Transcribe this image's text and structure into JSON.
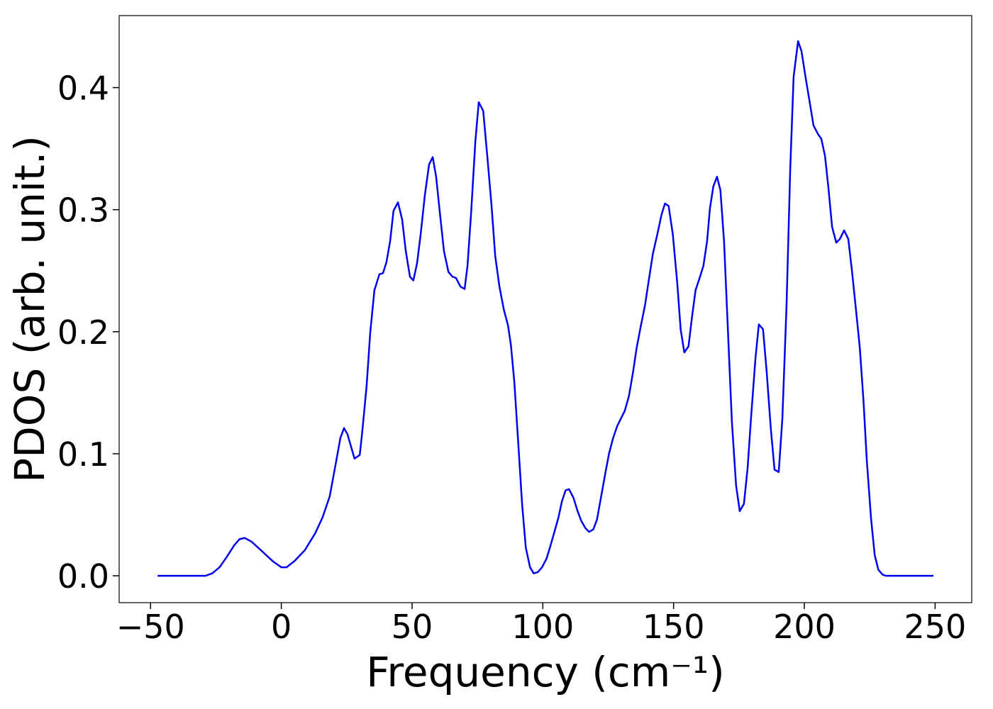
{
  "chart_data": {
    "type": "line",
    "xlabel": "Frequency (cm⁻¹)",
    "ylabel": "PDOS (arb. unit.)",
    "color": "#0000ee",
    "x": [
      -47.3,
      -29,
      -26.4,
      -23.6,
      -21,
      -18,
      -16,
      -14,
      -11.4,
      -7.3,
      -3.3,
      0,
      2,
      5,
      9,
      13,
      15.8,
      18.5,
      21,
      22.6,
      24,
      25.3,
      28,
      30,
      31,
      32.6,
      34,
      35.6,
      37.5,
      38.9,
      40.2,
      41.6,
      42.9,
      44.6,
      46.2,
      47.6,
      49.2,
      50.5,
      51.9,
      53.3,
      54.9,
      56.5,
      57.9,
      59.2,
      60.6,
      62.2,
      63.9,
      65.5,
      66.8,
      68.5,
      70.1,
      71.2,
      72.6,
      74.2,
      75.5,
      77.2,
      78.8,
      80.4,
      81.8,
      83.4,
      85.1,
      86.7,
      87.8,
      89.1,
      90.5,
      92.1,
      93.5,
      95.1,
      96.5,
      98.1,
      99.7,
      101.4,
      102.7,
      104.3,
      106,
      107.3,
      108.7,
      110,
      111.7,
      113.3,
      114.7,
      116.3,
      117.7,
      119.3,
      120.7,
      122.3,
      123.9,
      125.3,
      126.9,
      128.5,
      129.9,
      131.3,
      132.9,
      134.5,
      135.9,
      137.5,
      139.1,
      140.5,
      142.1,
      143.8,
      145.4,
      146.7,
      148.1,
      149.7,
      151.4,
      152.7,
      154.1,
      155.7,
      157.1,
      158.4,
      160.1,
      161.4,
      162.8,
      163.9,
      165.2,
      166.6,
      167.9,
      169.3,
      170.7,
      172.3,
      173.9,
      175.3,
      176.9,
      178.3,
      179.6,
      181.3,
      182.6,
      184.2,
      185.6,
      187.2,
      188.6,
      190.2,
      191.6,
      193.2,
      194.6,
      195.9,
      197.6,
      198.9,
      200.5,
      202.2,
      203.5,
      205.2,
      206.5,
      207.9,
      209.2,
      210.6,
      212.2,
      213.6,
      215.2,
      216.8,
      218.2,
      219.6,
      221.2,
      222.6,
      223.9,
      225.5,
      226.9,
      228.3,
      229.9,
      231.2,
      249.4
    ],
    "values": [
      0,
      0,
      0.002,
      0.007,
      0.015,
      0.025,
      0.03,
      0.031,
      0.028,
      0.02,
      0.012,
      0.007,
      0.007,
      0.012,
      0.021,
      0.035,
      0.048,
      0.065,
      0.094,
      0.113,
      0.121,
      0.116,
      0.096,
      0.099,
      0.119,
      0.155,
      0.199,
      0.234,
      0.247,
      0.248,
      0.257,
      0.274,
      0.299,
      0.306,
      0.292,
      0.266,
      0.245,
      0.242,
      0.256,
      0.28,
      0.312,
      0.337,
      0.343,
      0.327,
      0.298,
      0.266,
      0.249,
      0.245,
      0.244,
      0.237,
      0.235,
      0.254,
      0.298,
      0.356,
      0.388,
      0.381,
      0.343,
      0.303,
      0.262,
      0.237,
      0.218,
      0.205,
      0.189,
      0.159,
      0.112,
      0.058,
      0.023,
      0.007,
      0.002,
      0.003,
      0.007,
      0.014,
      0.023,
      0.035,
      0.048,
      0.061,
      0.07,
      0.071,
      0.064,
      0.053,
      0.045,
      0.039,
      0.036,
      0.038,
      0.046,
      0.065,
      0.084,
      0.1,
      0.113,
      0.123,
      0.129,
      0.135,
      0.147,
      0.167,
      0.187,
      0.205,
      0.222,
      0.242,
      0.264,
      0.28,
      0.296,
      0.305,
      0.303,
      0.28,
      0.24,
      0.202,
      0.183,
      0.188,
      0.213,
      0.234,
      0.245,
      0.254,
      0.274,
      0.301,
      0.319,
      0.327,
      0.316,
      0.274,
      0.205,
      0.126,
      0.074,
      0.053,
      0.059,
      0.088,
      0.129,
      0.178,
      0.206,
      0.202,
      0.167,
      0.12,
      0.087,
      0.085,
      0.129,
      0.222,
      0.333,
      0.409,
      0.438,
      0.43,
      0.408,
      0.386,
      0.369,
      0.362,
      0.358,
      0.344,
      0.318,
      0.286,
      0.273,
      0.276,
      0.283,
      0.276,
      0.25,
      0.221,
      0.187,
      0.144,
      0.094,
      0.047,
      0.017,
      0.005,
      0.001,
      0,
      0
    ],
    "xlim": [
      -62,
      264
    ],
    "ylim": [
      -0.022,
      0.459
    ],
    "xticks": [
      {
        "value": -50,
        "label": "−50"
      },
      0,
      50,
      100,
      150,
      200,
      250
    ],
    "yticks": [
      {
        "value": 0,
        "label": "0.0"
      },
      0.1,
      0.2,
      0.3,
      0.4
    ],
    "grid": false
  }
}
